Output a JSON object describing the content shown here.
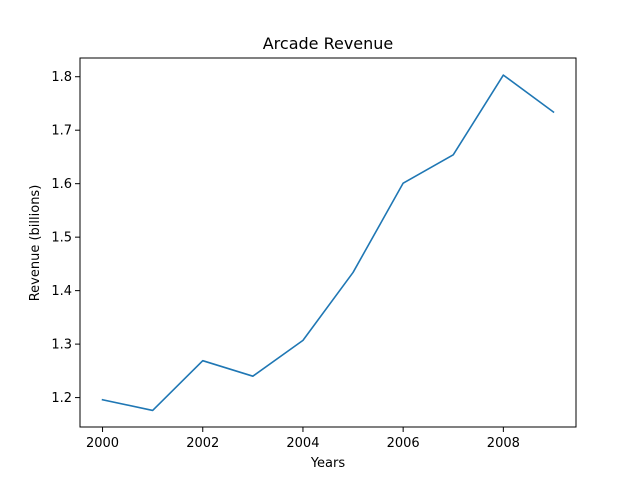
{
  "chart_data": {
    "type": "line",
    "title": "Arcade Revenue",
    "xlabel": "Years",
    "ylabel": "Revenue (billions)",
    "x": [
      2000,
      2001,
      2002,
      2003,
      2004,
      2005,
      2006,
      2007,
      2008,
      2009
    ],
    "series": [
      {
        "values": [
          1.196,
          1.176,
          1.269,
          1.24,
          1.307,
          1.434,
          1.601,
          1.654,
          1.803,
          1.734
        ],
        "color": "#1f77b4"
      }
    ],
    "xlim": [
      1999.55,
      2009.45
    ],
    "ylim": [
      1.145,
      1.835
    ],
    "xticks": [
      2000,
      2002,
      2004,
      2006,
      2008
    ],
    "xtick_labels": [
      "2000",
      "2002",
      "2004",
      "2006",
      "2008"
    ],
    "yticks": [
      1.2,
      1.3,
      1.4,
      1.5,
      1.6,
      1.7,
      1.8
    ],
    "ytick_labels": [
      "1.2",
      "1.3",
      "1.4",
      "1.5",
      "1.6",
      "1.7",
      "1.8"
    ],
    "grid": false,
    "legend": false
  }
}
